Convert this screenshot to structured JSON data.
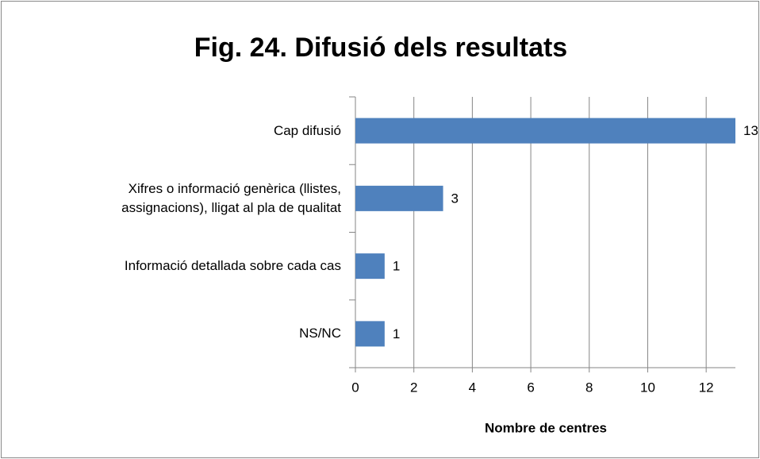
{
  "chart_data": {
    "type": "bar",
    "orientation": "horizontal",
    "title": "Fig. 24. Difusió dels resultats",
    "xlabel": "Nombre de centres",
    "categories": [
      "Cap difusió",
      "Xifres o informació genèrica (llistes,\nassignacions), lligat al pla de qualitat",
      "Informació detallada sobre cada cas",
      "NS/NC"
    ],
    "values": [
      13,
      3,
      1,
      1
    ],
    "color": "#4f81bd",
    "xlim": [
      0,
      13
    ],
    "xticks": [
      0,
      2,
      4,
      6,
      8,
      10,
      12
    ],
    "grid": true
  }
}
